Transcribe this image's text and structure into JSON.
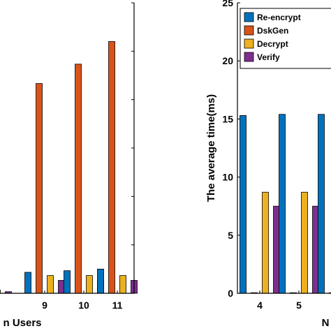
{
  "chart_data": [
    {
      "type": "bar",
      "categories": [
        "",
        "9",
        "10",
        "11"
      ],
      "series": [
        {
          "name": "Re-encrypt",
          "color": "#0072BD",
          "values": [
            0.3,
            1.3,
            1.4,
            1.5
          ]
        },
        {
          "name": "DskGen",
          "color": "#D95319",
          "values": [
            0.0,
            13.0,
            14.2,
            15.6
          ]
        },
        {
          "name": "Decrypt",
          "color": "#EDB120",
          "values": [
            0.2,
            1.1,
            1.1,
            1.1
          ]
        },
        {
          "name": "Verify",
          "color": "#7E2F8E",
          "values": [
            0.1,
            0.8,
            0.8,
            0.8
          ]
        }
      ],
      "xlabel": "n Users",
      "ylabel": "",
      "ylim": [
        0,
        18
      ],
      "grid": false,
      "yticks": []
    },
    {
      "type": "bar",
      "categories": [
        "4",
        "5",
        ""
      ],
      "series": [
        {
          "name": "Re-encrypt",
          "color": "#0072BD",
          "values": [
            15.3,
            15.4,
            15.4
          ]
        },
        {
          "name": "DskGen",
          "color": "#D95319",
          "values": [
            0.05,
            0.05,
            0.05
          ]
        },
        {
          "name": "Decrypt",
          "color": "#EDB120",
          "values": [
            8.7,
            8.7,
            8.7
          ]
        },
        {
          "name": "Verify",
          "color": "#7E2F8E",
          "values": [
            7.5,
            7.5,
            7.5
          ]
        }
      ],
      "xlabel": "N",
      "ylabel": "The average time(ms)",
      "ylim": [
        0,
        25
      ],
      "yticks": [
        "0",
        "5",
        "10",
        "15",
        "20",
        "25"
      ],
      "grid": false,
      "legend": {
        "placement": "top-right",
        "entries": [
          "Re-encrypt",
          "DskGen",
          "Decrypt",
          "Verify"
        ]
      }
    }
  ]
}
